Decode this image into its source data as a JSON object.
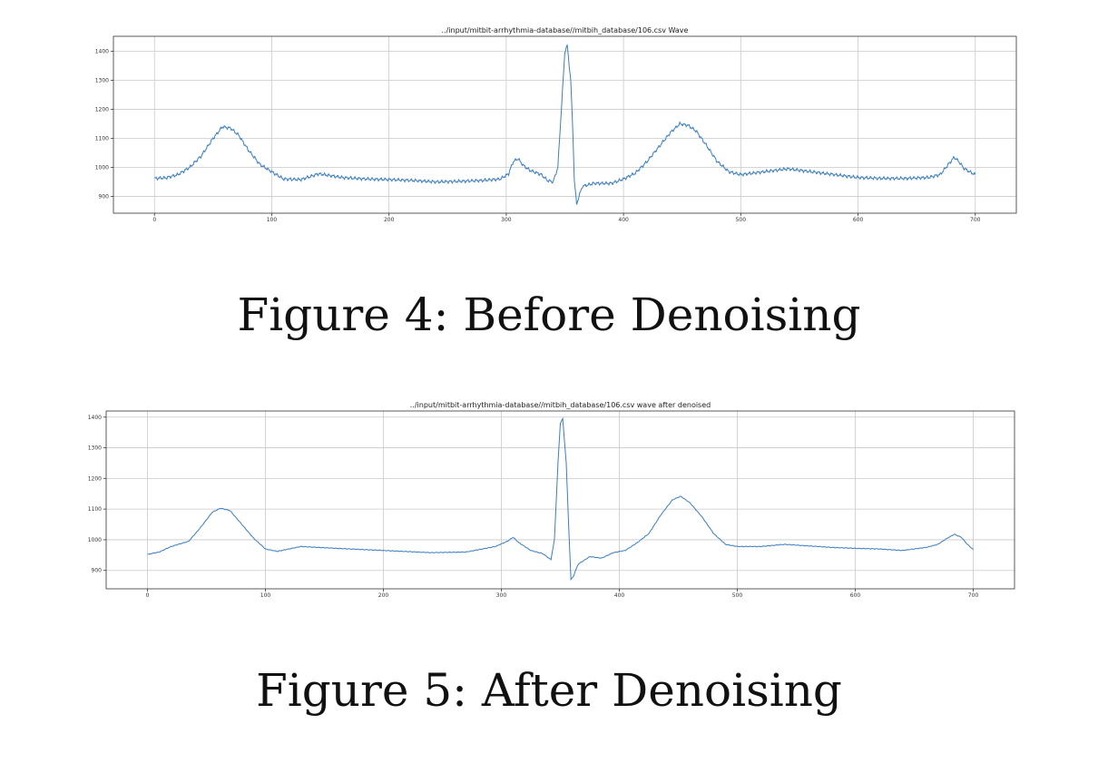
{
  "chart_data": [
    {
      "type": "line",
      "title": "../input/mitbit-arrhythmia-database//mitbih_database/106.csv Wave",
      "caption": "Figure 4: Before Denoising",
      "xlabel": "",
      "ylabel": "",
      "xlim": [
        -35,
        735
      ],
      "ylim": [
        842,
        1452
      ],
      "xticks": [
        0,
        100,
        200,
        300,
        400,
        500,
        600,
        700
      ],
      "yticks": [
        900,
        1000,
        1100,
        1200,
        1300,
        1400
      ],
      "xtick_labels": [
        "0",
        "100",
        "200",
        "300",
        "400",
        "500",
        "600",
        "700"
      ],
      "ytick_labels": [
        "900",
        "1000",
        "1100",
        "1200",
        "1300",
        "1400"
      ],
      "grid": true,
      "color": "#3a7ebf",
      "noise": 6,
      "series": [
        {
          "keypoints": [
            [
              0,
              962
            ],
            [
              10,
              964
            ],
            [
              20,
              975
            ],
            [
              30,
              1000
            ],
            [
              40,
              1040
            ],
            [
              50,
              1100
            ],
            [
              58,
              1140
            ],
            [
              65,
              1135
            ],
            [
              72,
              1110
            ],
            [
              80,
              1060
            ],
            [
              90,
              1010
            ],
            [
              100,
              985
            ],
            [
              110,
              960
            ],
            [
              125,
              958
            ],
            [
              140,
              978
            ],
            [
              160,
              965
            ],
            [
              180,
              960
            ],
            [
              200,
              958
            ],
            [
              220,
              955
            ],
            [
              240,
              950
            ],
            [
              260,
              952
            ],
            [
              280,
              955
            ],
            [
              295,
              960
            ],
            [
              302,
              978
            ],
            [
              306,
              1020
            ],
            [
              310,
              1030
            ],
            [
              315,
              1005
            ],
            [
              320,
              990
            ],
            [
              330,
              975
            ],
            [
              335,
              955
            ],
            [
              340,
              950
            ],
            [
              344,
              1000
            ],
            [
              347,
              1200
            ],
            [
              350,
              1400
            ],
            [
              352,
              1420
            ],
            [
              355,
              1300
            ],
            [
              357,
              1100
            ],
            [
              358,
              960
            ],
            [
              360,
              872
            ],
            [
              362,
              900
            ],
            [
              365,
              935
            ],
            [
              375,
              945
            ],
            [
              390,
              945
            ],
            [
              400,
              960
            ],
            [
              410,
              980
            ],
            [
              420,
              1020
            ],
            [
              430,
              1070
            ],
            [
              440,
              1120
            ],
            [
              448,
              1150
            ],
            [
              455,
              1145
            ],
            [
              462,
              1125
            ],
            [
              470,
              1080
            ],
            [
              480,
              1020
            ],
            [
              490,
              985
            ],
            [
              500,
              975
            ],
            [
              520,
              985
            ],
            [
              540,
              995
            ],
            [
              560,
              985
            ],
            [
              580,
              975
            ],
            [
              600,
              965
            ],
            [
              620,
              962
            ],
            [
              640,
              962
            ],
            [
              660,
              965
            ],
            [
              670,
              975
            ],
            [
              676,
              1005
            ],
            [
              682,
              1035
            ],
            [
              686,
              1020
            ],
            [
              690,
              998
            ],
            [
              695,
              985
            ],
            [
              700,
              975
            ]
          ]
        }
      ]
    },
    {
      "type": "line",
      "title": "../input/mitbit-arrhythmia-database//mitbih_database/106.csv wave after denoised",
      "caption": "Figure 5: After Denoising",
      "xlabel": "",
      "ylabel": "",
      "xlim": [
        -35,
        735
      ],
      "ylim": [
        840,
        1420
      ],
      "xticks": [
        0,
        100,
        200,
        300,
        400,
        500,
        600,
        700
      ],
      "yticks": [
        900,
        1000,
        1100,
        1200,
        1300,
        1400
      ],
      "xtick_labels": [
        "0",
        "100",
        "200",
        "300",
        "400",
        "500",
        "600",
        "700"
      ],
      "ytick_labels": [
        "900",
        "1000",
        "1100",
        "1200",
        "1300",
        "1400"
      ],
      "grid": true,
      "color": "#3a7ebf",
      "noise": 1.2,
      "series": [
        {
          "keypoints": [
            [
              0,
              952
            ],
            [
              10,
              960
            ],
            [
              20,
              978
            ],
            [
              35,
              995
            ],
            [
              45,
              1040
            ],
            [
              55,
              1090
            ],
            [
              62,
              1103
            ],
            [
              70,
              1095
            ],
            [
              80,
              1050
            ],
            [
              90,
              1005
            ],
            [
              100,
              970
            ],
            [
              110,
              962
            ],
            [
              130,
              978
            ],
            [
              160,
              972
            ],
            [
              200,
              965
            ],
            [
              240,
              958
            ],
            [
              270,
              960
            ],
            [
              295,
              978
            ],
            [
              305,
              995
            ],
            [
              310,
              1008
            ],
            [
              315,
              990
            ],
            [
              325,
              965
            ],
            [
              335,
              955
            ],
            [
              342,
              935
            ],
            [
              345,
              1000
            ],
            [
              348,
              1250
            ],
            [
              350,
              1380
            ],
            [
              352,
              1395
            ],
            [
              355,
              1250
            ],
            [
              357,
              1050
            ],
            [
              359,
              870
            ],
            [
              361,
              880
            ],
            [
              365,
              920
            ],
            [
              375,
              945
            ],
            [
              385,
              940
            ],
            [
              395,
              958
            ],
            [
              405,
              965
            ],
            [
              415,
              990
            ],
            [
              425,
              1020
            ],
            [
              435,
              1080
            ],
            [
              445,
              1130
            ],
            [
              452,
              1142
            ],
            [
              460,
              1120
            ],
            [
              470,
              1075
            ],
            [
              480,
              1020
            ],
            [
              490,
              985
            ],
            [
              500,
              978
            ],
            [
              520,
              978
            ],
            [
              540,
              985
            ],
            [
              560,
              980
            ],
            [
              580,
              975
            ],
            [
              600,
              972
            ],
            [
              620,
              970
            ],
            [
              640,
              965
            ],
            [
              660,
              975
            ],
            [
              670,
              985
            ],
            [
              678,
              1005
            ],
            [
              684,
              1018
            ],
            [
              690,
              1008
            ],
            [
              695,
              985
            ],
            [
              700,
              968
            ]
          ]
        }
      ]
    }
  ]
}
